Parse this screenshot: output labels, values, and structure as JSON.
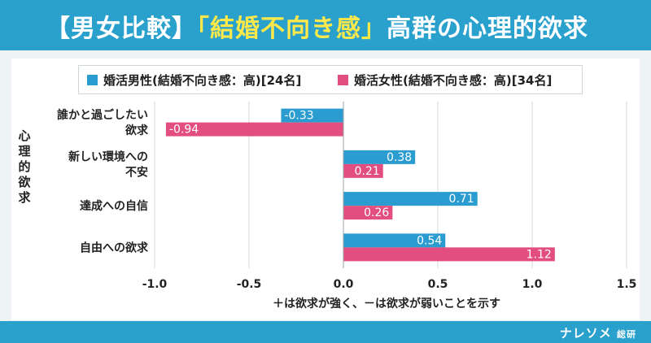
{
  "header": {
    "title_left": "【男女比較】",
    "title_accent": "「結婚不向き感」",
    "title_right": "高群の心理的欲求"
  },
  "colors": {
    "header": "#2aa0cd",
    "male": "#2a9cd0",
    "female": "#e14e7f",
    "accent": "#ffe94a"
  },
  "footer": {
    "logo_main": "ナレソメ",
    "logo_small": "総研"
  },
  "chart_data": {
    "type": "bar",
    "orientation": "horizontal",
    "categories": [
      [
        "誰かと過ごしたい",
        "欲求"
      ],
      [
        "新しい環境への",
        "不安"
      ],
      [
        "達成への自信"
      ],
      [
        "自由への欲求"
      ]
    ],
    "series": [
      {
        "name": "婚活男性(結婚不向き感：高)[24名]",
        "values": [
          -0.33,
          0.38,
          0.71,
          0.54
        ],
        "labels": [
          "-0.33",
          "0.38",
          "0.71",
          "0.54"
        ]
      },
      {
        "name": "婚活女性(結婚不向き感：高)[34名]",
        "values": [
          -0.94,
          0.21,
          0.26,
          1.12
        ],
        "labels": [
          "-0.94",
          "0.21",
          "0.26",
          "1.12"
        ]
      }
    ],
    "xlim": [
      -1.0,
      1.5
    ],
    "xticks": [
      "-1.0",
      "-0.5",
      "0.0",
      "0.5",
      "1.0",
      "1.5"
    ],
    "xlabel": "＋は欲求が強く、－は欲求が弱いことを示す",
    "ylabel": "心理的欲求",
    "grid": "vertical",
    "legend_position": "top"
  }
}
